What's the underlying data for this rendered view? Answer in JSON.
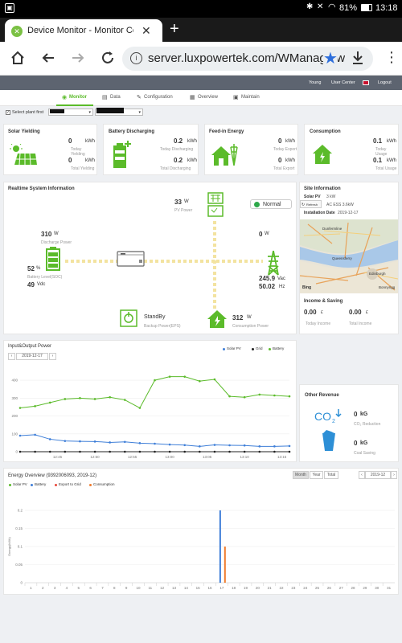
{
  "status": {
    "battery": "81%",
    "time": "13:18"
  },
  "browser": {
    "tab_title": "Device Monitor - Monitor Ce",
    "url": "server.luxpowertek.com/WManage/w"
  },
  "site": {
    "user": "Young",
    "user_center": "User Center",
    "logout": "Logout",
    "nav": [
      "Monitor",
      "Data",
      "Configuration",
      "Overview",
      "Maintain"
    ],
    "select_label": "Select plant first"
  },
  "summary": [
    {
      "title": "Solar Yielding",
      "v1": "0",
      "u1": "kWh",
      "l1": "Today Yielding",
      "v2": "0",
      "u2": "kWh",
      "l2": "Total Yielding"
    },
    {
      "title": "Battery Discharging",
      "v1": "0.2",
      "u1": "kWh",
      "l1": "Today Discharging",
      "v2": "0.2",
      "u2": "kWh",
      "l2": "Total Discharging"
    },
    {
      "title": "Feed-in Energy",
      "v1": "0",
      "u1": "kWh",
      "l1": "Today Export",
      "v2": "0",
      "u2": "kWh",
      "l2": "Total Export"
    },
    {
      "title": "Consumption",
      "v1": "0.1",
      "u1": "kWh",
      "l1": "Today Usage",
      "v2": "0.1",
      "u2": "kWh",
      "l2": "Total Usage"
    }
  ],
  "realtime": {
    "title": "Realtime System Information",
    "pv_value": "33",
    "pv_unit": "W",
    "pv_label": "PV Power",
    "status": "Normal",
    "discharge_value": "310",
    "discharge_unit": "W",
    "discharge_label": "Discharge Power",
    "soc_value": "52",
    "soc_unit": "%",
    "soc_label": "Battery Level(SOC)",
    "batt_v": "49",
    "batt_v_unit": "Vdc",
    "grid_value": "0",
    "grid_unit": "W",
    "vac": "245.9",
    "vac_unit": "Vac",
    "hz": "50.02",
    "hz_unit": "Hz",
    "eps_status": "StandBy",
    "eps_label": "Backup Power(EPS)",
    "cons_value": "312",
    "cons_unit": "W",
    "cons_label": "Consumption Power"
  },
  "site_info": {
    "title": "Site Information",
    "pv_label": "Solar PV",
    "pv_value": "3 kW",
    "refresh": "Refresh",
    "model": "AC ESS 3.6kW",
    "install_label": "Installation Date",
    "install_value": "2019-12-17",
    "map_labels": [
      "Dunfermline",
      "Queensferry",
      "Edinburgh",
      "Bonnyrigg"
    ],
    "map_logo": "Bing"
  },
  "income": {
    "title": "Income & Saving",
    "today_value": "0.00",
    "today_unit": "£",
    "today_label": "Today Income",
    "total_value": "0.00",
    "total_unit": "£",
    "total_label": "Total Income"
  },
  "revenue": {
    "title": "Other Revenue",
    "co2_value": "0",
    "co2_unit": "kG",
    "co2_label": "CO₂ Reduction",
    "coal_value": "0",
    "coal_unit": "kG",
    "coal_label": "Coal Saving"
  },
  "io_chart": {
    "title": "Input&Output Power",
    "date": "2019-12-17",
    "prev": "‹",
    "next": "›"
  },
  "energy": {
    "title": "Energy Overview (9392006093, 2019-12)",
    "buttons": [
      "Month",
      "Year",
      "Total"
    ],
    "date": "2019-12",
    "prev": "‹",
    "next": "›"
  },
  "colors": {
    "green": "#5bbb2a",
    "blue": "#3f7fd8",
    "orange": "#f07b2c",
    "red": "#e8483b",
    "black": "#222"
  },
  "chart_data": [
    {
      "type": "line",
      "title": "Input&Output Power",
      "x": [
        "12:40",
        "12:42",
        "12:44",
        "12:46",
        "12:48",
        "12:50",
        "12:52",
        "12:54",
        "12:56",
        "12:58",
        "13:00",
        "13:02",
        "13:04",
        "13:06",
        "13:08",
        "13:10",
        "13:12",
        "13:14",
        "13:16"
      ],
      "xticks": [
        "12:45",
        "12:50",
        "12:55",
        "13:00",
        "13:05",
        "13:10",
        "13:15"
      ],
      "ylim": [
        0,
        450
      ],
      "yticks": [
        0,
        100,
        200,
        300,
        400
      ],
      "legend_position": "top-right",
      "series": [
        {
          "name": "Solar PV",
          "color": "#3f7fd8",
          "values": [
            90,
            95,
            70,
            60,
            58,
            57,
            52,
            55,
            48,
            45,
            40,
            37,
            30,
            38,
            36,
            35,
            30,
            30,
            32
          ]
        },
        {
          "name": "Grid",
          "color": "#222222",
          "values": [
            0,
            0,
            0,
            0,
            0,
            0,
            0,
            0,
            0,
            0,
            0,
            0,
            0,
            0,
            0,
            0,
            0,
            0,
            0
          ]
        },
        {
          "name": "Battery",
          "color": "#5bbb2a",
          "values": [
            245,
            255,
            275,
            295,
            300,
            295,
            305,
            290,
            245,
            400,
            420,
            420,
            395,
            405,
            310,
            305,
            320,
            315,
            310
          ]
        }
      ]
    },
    {
      "type": "bar",
      "title": "Energy Overview (9392006093, 2019-12)",
      "ylabel": "Energy(kWh)",
      "categories": [
        "1",
        "2",
        "3",
        "4",
        "5",
        "6",
        "7",
        "8",
        "9",
        "10",
        "11",
        "12",
        "13",
        "14",
        "15",
        "16",
        "17",
        "18",
        "19",
        "20",
        "21",
        "22",
        "23",
        "24",
        "25",
        "26",
        "27",
        "28",
        "29",
        "30",
        "31"
      ],
      "ylim": [
        0,
        0.2
      ],
      "yticks": [
        0,
        0.05,
        0.1,
        0.15,
        0.2
      ],
      "legend_position": "top-left",
      "series": [
        {
          "name": "Solar PV",
          "color": "#5bbb2a",
          "values": [
            0,
            0,
            0,
            0,
            0,
            0,
            0,
            0,
            0,
            0,
            0,
            0,
            0,
            0,
            0,
            0,
            0,
            0,
            0,
            0,
            0,
            0,
            0,
            0,
            0,
            0,
            0,
            0,
            0,
            0,
            0
          ]
        },
        {
          "name": "Battery",
          "color": "#3f7fd8",
          "values": [
            0,
            0,
            0,
            0,
            0,
            0,
            0,
            0,
            0,
            0,
            0,
            0,
            0,
            0,
            0,
            0,
            0.2,
            0,
            0,
            0,
            0,
            0,
            0,
            0,
            0,
            0,
            0,
            0,
            0,
            0,
            0
          ]
        },
        {
          "name": "Export to Grid",
          "color": "#e8483b",
          "values": [
            0,
            0,
            0,
            0,
            0,
            0,
            0,
            0,
            0,
            0,
            0,
            0,
            0,
            0,
            0,
            0,
            0,
            0,
            0,
            0,
            0,
            0,
            0,
            0,
            0,
            0,
            0,
            0,
            0,
            0,
            0
          ]
        },
        {
          "name": "Consumption",
          "color": "#f07b2c",
          "values": [
            0,
            0,
            0,
            0,
            0,
            0,
            0,
            0,
            0,
            0,
            0,
            0,
            0,
            0,
            0,
            0,
            0.1,
            0,
            0,
            0,
            0,
            0,
            0,
            0,
            0,
            0,
            0,
            0,
            0,
            0,
            0
          ]
        }
      ]
    }
  ]
}
